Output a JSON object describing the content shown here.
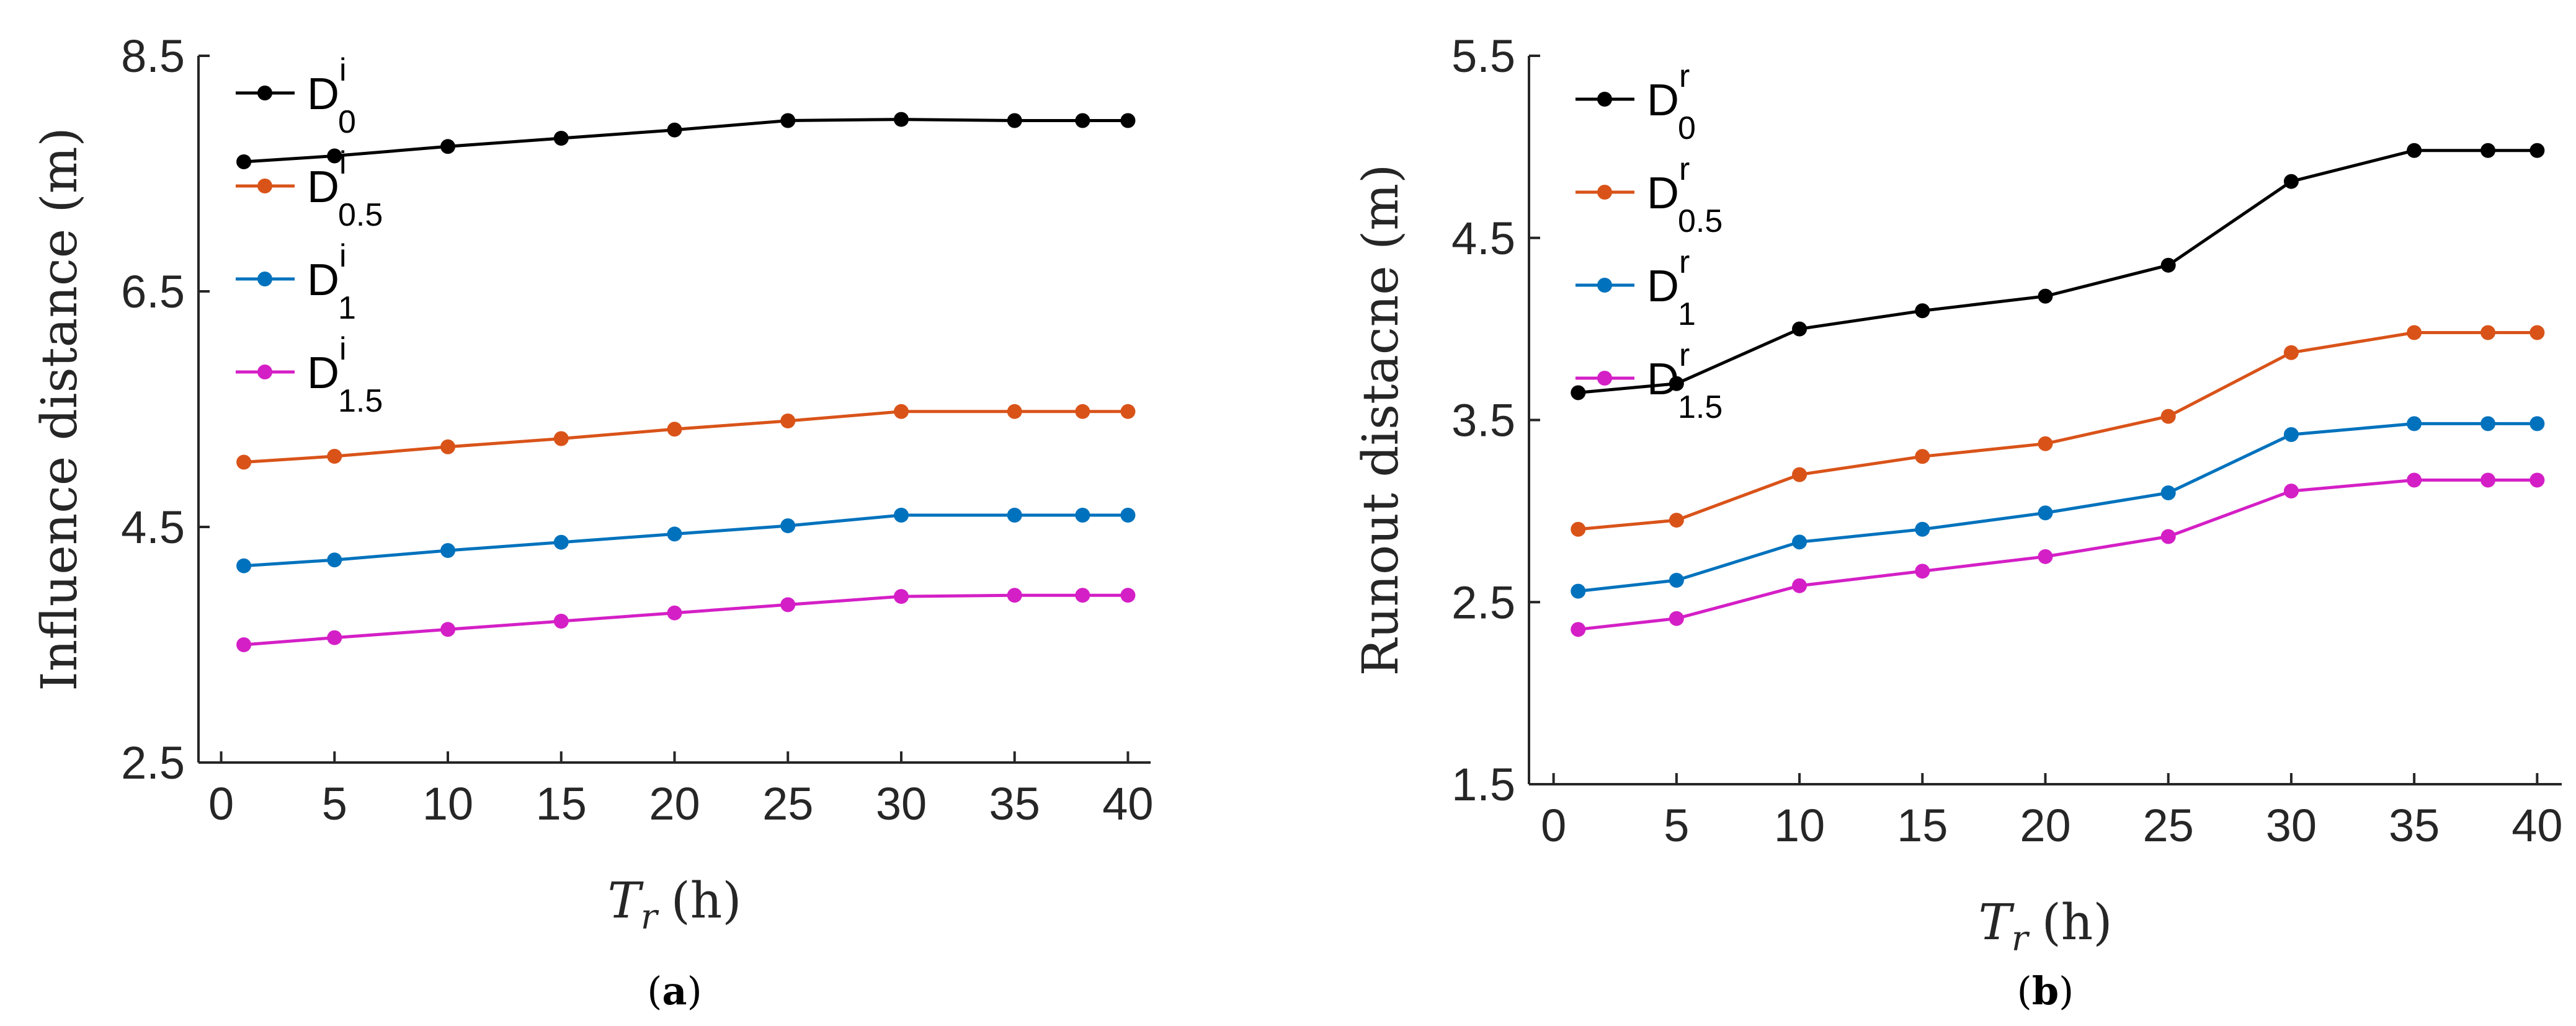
{
  "chart_data": [
    {
      "type": "line",
      "panel": "a",
      "caption": {
        "open": "(",
        "letter": "a",
        "close": ")"
      },
      "ylabel": "Influence distance (m)",
      "xlabel": {
        "var": "T",
        "sub": "r",
        "unit": "(h)"
      },
      "x": [
        1,
        5,
        10,
        15,
        20,
        25,
        30,
        35,
        38,
        40
      ],
      "xticks": [
        0,
        5,
        10,
        15,
        20,
        25,
        30,
        35,
        40
      ],
      "xtick_labels": [
        "0",
        "5",
        "10",
        "15",
        "20",
        "25",
        "30",
        "35",
        "40"
      ],
      "xlim": [
        -1,
        41
      ],
      "yticks": [
        2.5,
        4.5,
        6.5,
        8.5
      ],
      "ytick_labels": [
        "2.5",
        "4.5",
        "6.5",
        "8.5"
      ],
      "ylim": [
        2.5,
        8.5
      ],
      "legend_location": "top-left",
      "series": [
        {
          "name": "D_0^i",
          "base": "D",
          "sub": "0",
          "sup": "i",
          "color": "#000000",
          "values": [
            7.6,
            7.65,
            7.73,
            7.8,
            7.87,
            7.95,
            7.96,
            7.95,
            7.95,
            7.95
          ]
        },
        {
          "name": "D_0.5^i",
          "base": "D",
          "sub": "0.5",
          "sup": "i",
          "color": "#D95319",
          "values": [
            5.05,
            5.1,
            5.18,
            5.25,
            5.33,
            5.4,
            5.48,
            5.48,
            5.48,
            5.48
          ]
        },
        {
          "name": "D_1^i",
          "base": "D",
          "sub": "1",
          "sup": "i",
          "color": "#0072BD",
          "values": [
            4.17,
            4.22,
            4.3,
            4.37,
            4.44,
            4.51,
            4.6,
            4.6,
            4.6,
            4.6
          ]
        },
        {
          "name": "D_1.5^i",
          "base": "D",
          "sub": "1.5",
          "sup": "i",
          "color": "#D41FC6",
          "values": [
            3.5,
            3.56,
            3.63,
            3.7,
            3.77,
            3.84,
            3.91,
            3.92,
            3.92,
            3.92
          ]
        }
      ]
    },
    {
      "type": "line",
      "panel": "b",
      "caption": {
        "open": "(",
        "letter": "b",
        "close": ")"
      },
      "ylabel": "Runout distacne (m)",
      "xlabel": {
        "var": "T",
        "sub": "r",
        "unit": "(h)"
      },
      "x": [
        1,
        5,
        10,
        15,
        20,
        25,
        30,
        35,
        38,
        40
      ],
      "xticks": [
        0,
        5,
        10,
        15,
        20,
        25,
        30,
        35,
        40
      ],
      "xtick_labels": [
        "0",
        "5",
        "10",
        "15",
        "20",
        "25",
        "30",
        "35",
        "40"
      ],
      "xlim": [
        -1,
        41
      ],
      "yticks": [
        1.5,
        2.5,
        3.5,
        4.5,
        5.5
      ],
      "ytick_labels": [
        "1.5",
        "2.5",
        "3.5",
        "4.5",
        "5.5"
      ],
      "ylim": [
        1.5,
        5.5
      ],
      "legend_location": "top-left",
      "series": [
        {
          "name": "D_0^r",
          "base": "D",
          "sub": "0",
          "sup": "r",
          "color": "#000000",
          "values": [
            3.65,
            3.7,
            4.0,
            4.1,
            4.18,
            4.35,
            4.81,
            4.98,
            4.98,
            4.98
          ]
        },
        {
          "name": "D_0.5^r",
          "base": "D",
          "sub": "0.5",
          "sup": "r",
          "color": "#D95319",
          "values": [
            2.9,
            2.95,
            3.2,
            3.3,
            3.37,
            3.52,
            3.87,
            3.98,
            3.98,
            3.98
          ]
        },
        {
          "name": "D_1^r",
          "base": "D",
          "sub": "1",
          "sup": "r",
          "color": "#0072BD",
          "values": [
            2.56,
            2.62,
            2.83,
            2.9,
            2.99,
            3.1,
            3.42,
            3.48,
            3.48,
            3.48
          ]
        },
        {
          "name": "D_1.5^r",
          "base": "D",
          "sub": "1.5",
          "sup": "r",
          "color": "#D41FC6",
          "values": [
            2.35,
            2.41,
            2.59,
            2.67,
            2.75,
            2.86,
            3.11,
            3.17,
            3.17,
            3.17
          ]
        }
      ]
    }
  ]
}
